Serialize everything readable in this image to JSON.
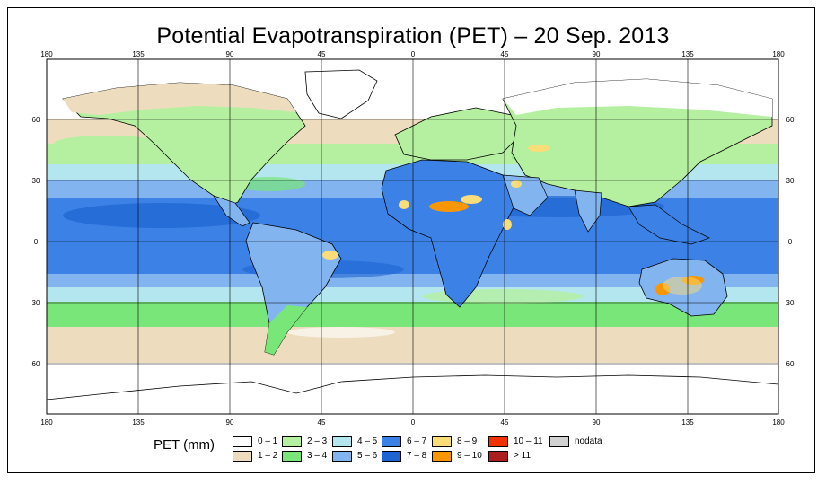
{
  "title": "Potential Evapotranspiration (PET) – 20 Sep. 2013",
  "map": {
    "lon_ticks": [
      "180",
      "135",
      "90",
      "45",
      "0",
      "45",
      "90",
      "135",
      "180"
    ],
    "lat_ticks": [
      "60",
      "30",
      "0",
      "30",
      "60"
    ],
    "lon_range": [
      -180,
      180
    ],
    "lat_range": [
      -90,
      90
    ],
    "graticule": true,
    "features": [
      {
        "name": "sahara-hotspot",
        "class": "7–8",
        "lon": 30,
        "lat": 22
      },
      {
        "name": "australia-hotspot",
        "class": "9–10",
        "lon": 125,
        "lat": -20
      },
      {
        "name": "arabia-hotspot",
        "class": "8–9",
        "lon": 45,
        "lat": 20
      },
      {
        "name": "brazil-hotspot",
        "class": "8–9",
        "lon": -48,
        "lat": -8
      },
      {
        "name": "iran-hotspot",
        "class": "8–9",
        "lon": 60,
        "lat": 40
      }
    ]
  },
  "legend": {
    "title": "PET (mm)",
    "items": [
      {
        "label": "0 – 1",
        "color": "#ffffff"
      },
      {
        "label": "1 – 2",
        "color": "#eedcbe"
      },
      {
        "label": "2 – 3",
        "color": "#b4f0a0"
      },
      {
        "label": "3 – 4",
        "color": "#78e678"
      },
      {
        "label": "4 – 5",
        "color": "#b4e6f0"
      },
      {
        "label": "5 – 6",
        "color": "#82b4f0"
      },
      {
        "label": "6 – 7",
        "color": "#3c82e6"
      },
      {
        "label": "7 – 8",
        "color": "#1e64d2"
      },
      {
        "label": "8 – 9",
        "color": "#fadc78"
      },
      {
        "label": "9 – 10",
        "color": "#fa9600"
      },
      {
        "label": "10 – 11",
        "color": "#f03200"
      },
      {
        "label": "> 11",
        "color": "#aa1e1e"
      },
      {
        "label": "nodata",
        "color": "#d2d2d2"
      }
    ]
  }
}
